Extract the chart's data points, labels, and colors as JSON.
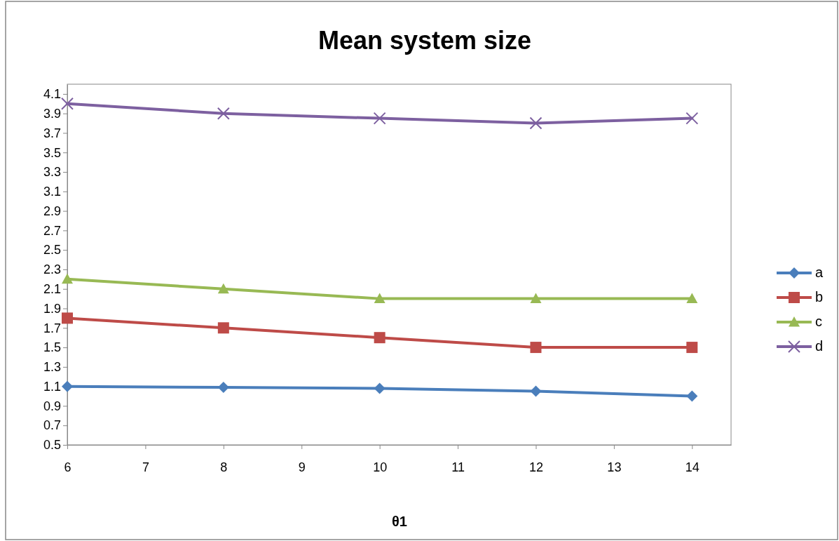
{
  "chart_data": {
    "type": "line",
    "title": "Mean system size",
    "xlabel": "θ1",
    "x": [
      6,
      8,
      10,
      12,
      14
    ],
    "xlim": [
      6,
      14.5
    ],
    "xticks": [
      6,
      7,
      8,
      9,
      10,
      11,
      12,
      13,
      14
    ],
    "ylim": [
      0.5,
      4.2
    ],
    "yticks": [
      0.5,
      0.7,
      0.9,
      1.1,
      1.3,
      1.5,
      1.7,
      1.9,
      2.1,
      2.3,
      2.5,
      2.7,
      2.9,
      3.1,
      3.3,
      3.5,
      3.7,
      3.9,
      4.1
    ],
    "grid": false,
    "legend": "right",
    "line_style": "solid",
    "series": [
      {
        "name": "a",
        "color": "#4a7ebb",
        "marker": "diamond",
        "values": [
          1.1,
          1.09,
          1.08,
          1.05,
          1.0
        ]
      },
      {
        "name": "b",
        "color": "#be4b48",
        "marker": "square",
        "values": [
          1.8,
          1.7,
          1.6,
          1.5,
          1.5
        ]
      },
      {
        "name": "c",
        "color": "#98b954",
        "marker": "triangle",
        "values": [
          2.2,
          2.1,
          2.0,
          2.0,
          2.0
        ]
      },
      {
        "name": "d",
        "color": "#7d60a0",
        "marker": "cross",
        "values": [
          4.0,
          3.9,
          3.85,
          3.8,
          3.85
        ]
      }
    ]
  }
}
